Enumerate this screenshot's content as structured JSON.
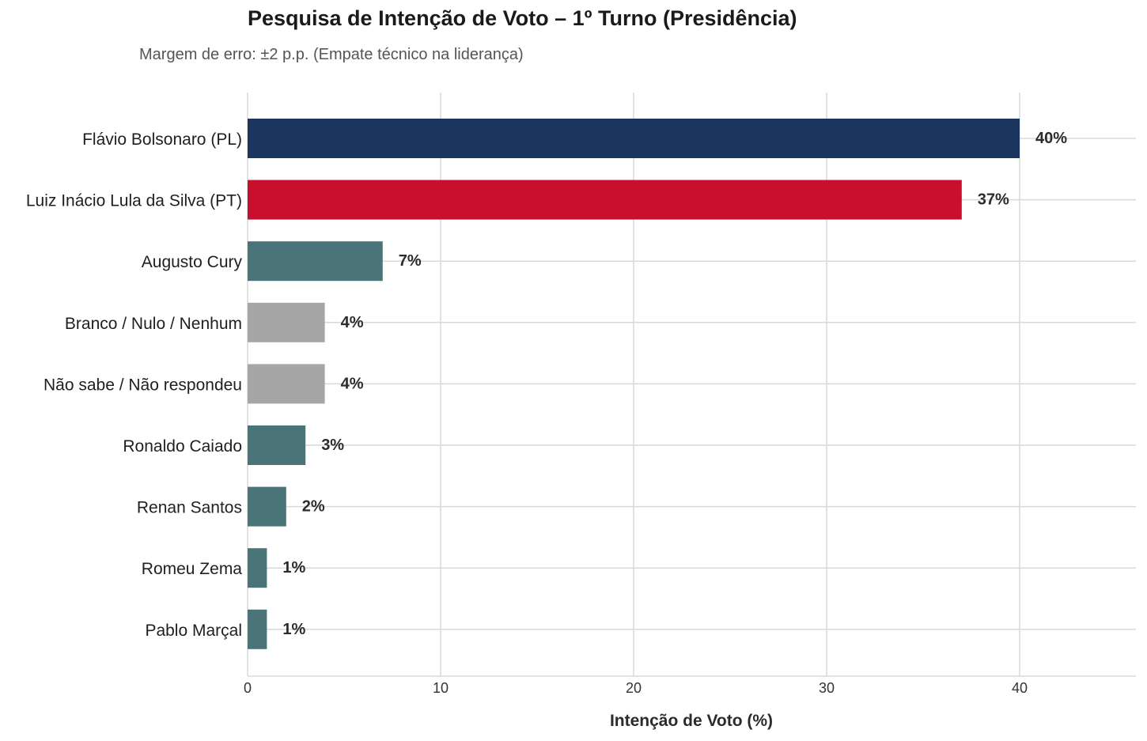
{
  "chart_data": {
    "type": "bar",
    "orientation": "horizontal",
    "title": "Pesquisa de Intenção de Voto – 1º Turno (Presidência)",
    "subtitle": "Margem de erro: ±2 p.p. (Empate técnico na liderança)",
    "xlabel": "Intenção de Voto (%)",
    "ylabel": "",
    "xlim": [
      0,
      46
    ],
    "xticks": [
      0,
      10,
      20,
      30,
      40
    ],
    "grid": true,
    "categories": [
      "Flávio Bolsonaro (PL)",
      "Luiz Inácio Lula da Silva (PT)",
      "Augusto Cury",
      "Branco / Nulo / Nenhum",
      "Não sabe / Não respondeu",
      "Ronaldo Caiado",
      "Renan Santos",
      "Romeu Zema",
      "Pablo Marçal"
    ],
    "values": [
      40,
      37,
      7,
      4,
      4,
      3,
      2,
      1,
      1
    ],
    "data_labels": [
      "40%",
      "37%",
      "7%",
      "4%",
      "4%",
      "3%",
      "2%",
      "1%",
      "1%"
    ],
    "colors": [
      "#1c355e",
      "#c8102e",
      "#4a7477",
      "#a6a6a6",
      "#a6a6a6",
      "#4a7477",
      "#4a7477",
      "#4a7477",
      "#4a7477"
    ]
  }
}
